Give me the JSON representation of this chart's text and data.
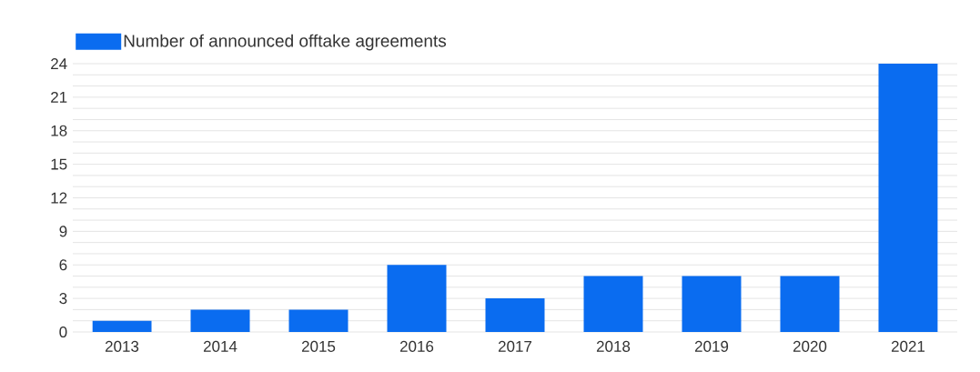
{
  "chart_data": {
    "type": "bar",
    "categories": [
      "2013",
      "2014",
      "2015",
      "2016",
      "2017",
      "2018",
      "2019",
      "2020",
      "2021"
    ],
    "series": [
      {
        "name": "Number of announced offtake agreements",
        "color": "#0a6cf0",
        "values": [
          1,
          2,
          2,
          6,
          3,
          5,
          5,
          5,
          24
        ]
      }
    ],
    "ylim": [
      0,
      24
    ],
    "yticks": [
      0,
      {
        "value": 1,
        "label": null
      },
      {
        "value": 2,
        "label": null
      },
      3,
      {
        "value": 4,
        "label": null
      },
      {
        "value": 5,
        "label": null
      },
      6,
      {
        "value": 7,
        "label": null
      },
      {
        "value": 8,
        "label": null
      },
      9,
      {
        "value": 10,
        "label": null
      },
      {
        "value": 11,
        "label": null
      },
      12,
      {
        "value": 13,
        "label": null
      },
      {
        "value": 14,
        "label": null
      },
      15,
      {
        "value": 16,
        "label": null
      },
      {
        "value": 17,
        "label": null
      },
      18,
      {
        "value": 19,
        "label": null
      },
      {
        "value": 20,
        "label": null
      },
      21,
      {
        "value": 22,
        "label": null
      },
      {
        "value": 23,
        "label": null
      },
      24
    ],
    "grid": "y",
    "legend": "top left"
  }
}
